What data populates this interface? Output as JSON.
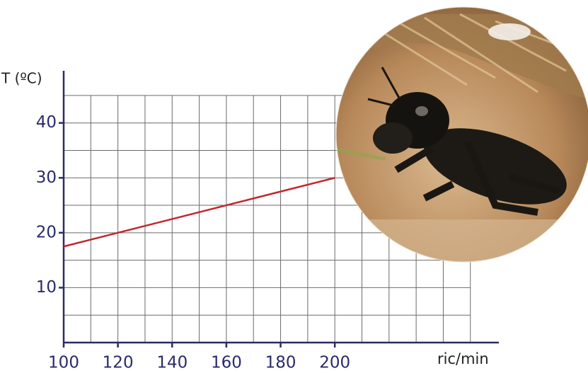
{
  "chart_data": {
    "type": "line",
    "y_label": "T (ºC)",
    "x_label": "ric/min",
    "x": [
      100,
      200
    ],
    "values": [
      17.5,
      30
    ],
    "color": "#c1272d",
    "xlim": [
      100,
      260.5
    ],
    "ylim": [
      0,
      49.5
    ],
    "xticks": [
      100,
      120,
      140,
      160,
      180,
      200
    ],
    "yticks": [
      10,
      20,
      30,
      40
    ],
    "xgrid": [
      110,
      120,
      130,
      140,
      150,
      160,
      170,
      180,
      190,
      200,
      210,
      220,
      230,
      240,
      250
    ],
    "ygrid": [
      5,
      10,
      15,
      20,
      25,
      30,
      35,
      40,
      45
    ],
    "axis_color": "#2b2a6b",
    "grid_color": "#6b6b6b"
  }
}
